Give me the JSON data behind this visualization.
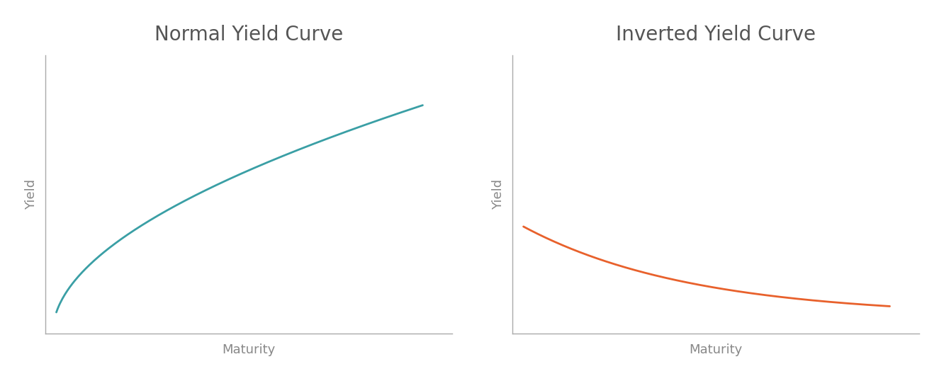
{
  "title_left": "Normal Yield Curve",
  "title_right": "Inverted Yield Curve",
  "xlabel": "Maturity",
  "ylabel": "Yield",
  "normal_color": "#3a9fa5",
  "inverted_color": "#e8612c",
  "background_color": "#ffffff",
  "axis_color": "#aaaaaa",
  "title_color": "#555555",
  "label_color": "#888888",
  "title_fontsize": 20,
  "label_fontsize": 13,
  "line_width": 2.0,
  "font_family": "sans-serif"
}
